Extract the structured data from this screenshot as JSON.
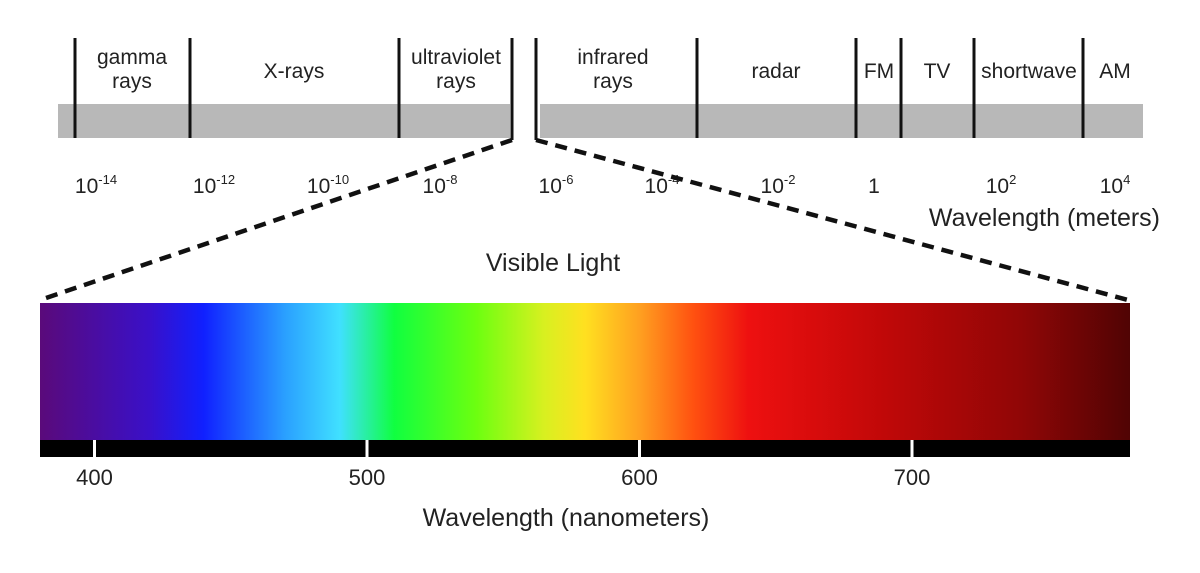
{
  "spectrum": {
    "bands": [
      {
        "lines": [
          "gamma",
          "rays"
        ]
      },
      {
        "lines": [
          "X-rays"
        ]
      },
      {
        "lines": [
          "ultraviolet",
          "rays"
        ]
      },
      {
        "lines": [
          "infrared",
          "rays"
        ]
      },
      {
        "lines": [
          "radar"
        ]
      },
      {
        "lines": [
          "FM"
        ]
      },
      {
        "lines": [
          "TV"
        ]
      },
      {
        "lines": [
          "shortwave"
        ]
      },
      {
        "lines": [
          "AM"
        ]
      }
    ],
    "wavelength_ticks": [
      {
        "base": "10",
        "exp": "-14"
      },
      {
        "base": "10",
        "exp": "-12"
      },
      {
        "base": "10",
        "exp": "-10"
      },
      {
        "base": "10",
        "exp": "-8"
      },
      {
        "base": "10",
        "exp": "-6"
      },
      {
        "base": "10",
        "exp": "-4"
      },
      {
        "base": "10",
        "exp": "-2"
      },
      {
        "base": "1",
        "exp": ""
      },
      {
        "base": "10",
        "exp": "2"
      },
      {
        "base": "10",
        "exp": "4"
      }
    ],
    "axis_title": "Wavelength (meters)"
  },
  "visible": {
    "title": "Visible Light",
    "range_nm": [
      380,
      780
    ],
    "ticks": [
      400,
      500,
      600,
      700
    ],
    "axis_title": "Wavelength (nanometers)",
    "colors": {
      "380": "#5a0a7a",
      "420": "#3a10c8",
      "440": "#1020ff",
      "470": "#2aa0ff",
      "490": "#40e0ff",
      "510": "#10ff40",
      "540": "#6cff10",
      "565": "#d8f020",
      "580": "#ffe020",
      "600": "#ffa020",
      "620": "#ff5010",
      "640": "#ee1010",
      "690": "#c00808",
      "740": "#900606",
      "780": "#500404"
    }
  }
}
